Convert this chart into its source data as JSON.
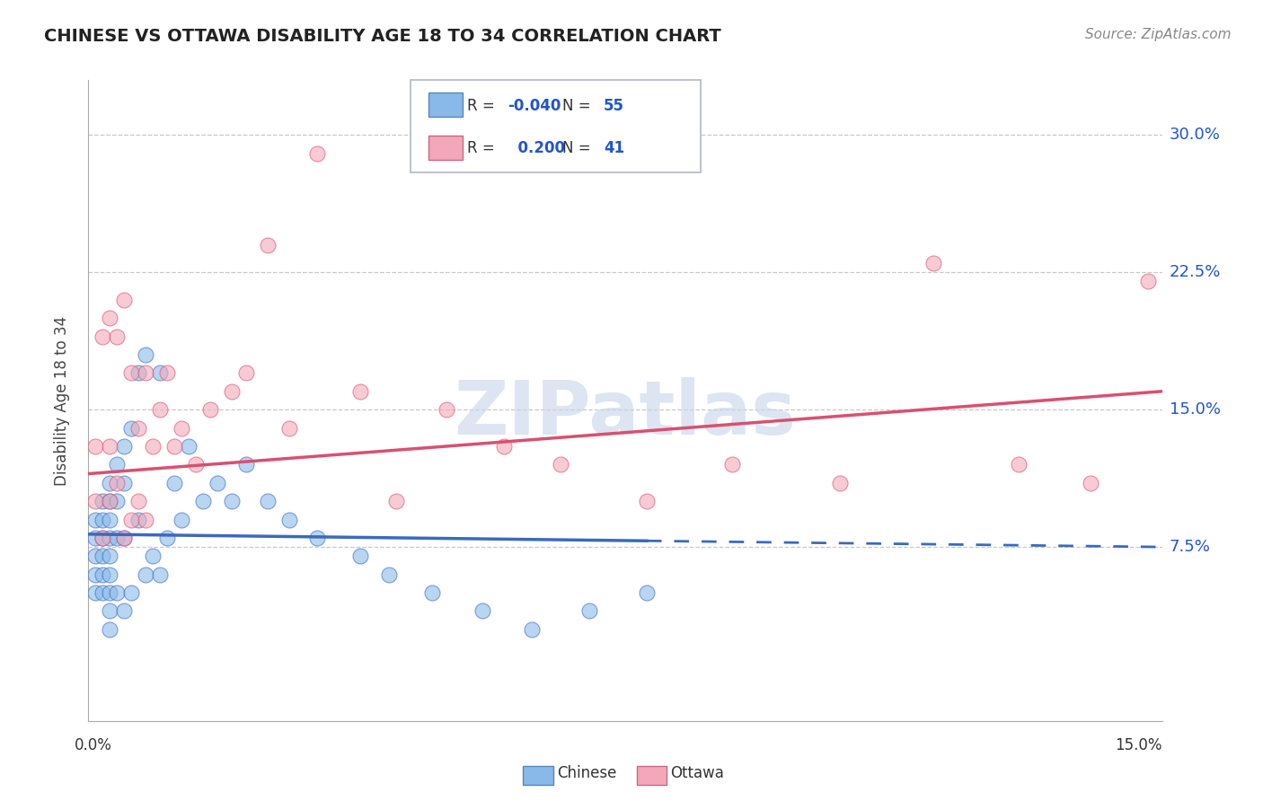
{
  "title": "CHINESE VS OTTAWA DISABILITY AGE 18 TO 34 CORRELATION CHART",
  "source": "Source: ZipAtlas.com",
  "ylabel": "Disability Age 18 to 34",
  "xlim": [
    0.0,
    0.15
  ],
  "ylim": [
    -0.02,
    0.33
  ],
  "yticks": [
    0.075,
    0.15,
    0.225,
    0.3
  ],
  "ytick_labels": [
    "7.5%",
    "15.0%",
    "22.5%",
    "30.0%"
  ],
  "legend_chinese_R": "-0.040",
  "legend_chinese_N": "55",
  "legend_ottawa_R": "0.200",
  "legend_ottawa_N": "41",
  "chinese_color": "#89b9e8",
  "ottawa_color": "#f2a8b8",
  "chinese_line_color": "#3a6abf",
  "ottawa_line_color": "#d95070",
  "watermark": "ZIPatlas",
  "chinese_x": [
    0.001,
    0.001,
    0.001,
    0.001,
    0.001,
    0.002,
    0.002,
    0.002,
    0.002,
    0.002,
    0.002,
    0.003,
    0.003,
    0.003,
    0.003,
    0.003,
    0.003,
    0.003,
    0.003,
    0.003,
    0.004,
    0.004,
    0.004,
    0.004,
    0.005,
    0.005,
    0.005,
    0.005,
    0.006,
    0.006,
    0.007,
    0.007,
    0.008,
    0.008,
    0.009,
    0.01,
    0.01,
    0.011,
    0.012,
    0.013,
    0.014,
    0.016,
    0.018,
    0.02,
    0.022,
    0.025,
    0.028,
    0.032,
    0.038,
    0.042,
    0.048,
    0.055,
    0.062,
    0.07,
    0.078
  ],
  "chinese_y": [
    0.09,
    0.08,
    0.07,
    0.06,
    0.05,
    0.1,
    0.09,
    0.08,
    0.07,
    0.06,
    0.05,
    0.11,
    0.1,
    0.09,
    0.08,
    0.07,
    0.06,
    0.05,
    0.04,
    0.03,
    0.12,
    0.1,
    0.08,
    0.05,
    0.13,
    0.11,
    0.08,
    0.04,
    0.14,
    0.05,
    0.17,
    0.09,
    0.18,
    0.06,
    0.07,
    0.17,
    0.06,
    0.08,
    0.11,
    0.09,
    0.13,
    0.1,
    0.11,
    0.1,
    0.12,
    0.1,
    0.09,
    0.08,
    0.07,
    0.06,
    0.05,
    0.04,
    0.03,
    0.04,
    0.05
  ],
  "ottawa_x": [
    0.001,
    0.001,
    0.002,
    0.002,
    0.003,
    0.003,
    0.003,
    0.004,
    0.004,
    0.005,
    0.005,
    0.006,
    0.006,
    0.007,
    0.007,
    0.008,
    0.008,
    0.009,
    0.01,
    0.011,
    0.012,
    0.013,
    0.015,
    0.017,
    0.02,
    0.022,
    0.025,
    0.028,
    0.032,
    0.038,
    0.043,
    0.05,
    0.058,
    0.066,
    0.078,
    0.09,
    0.105,
    0.118,
    0.13,
    0.14,
    0.148
  ],
  "ottawa_y": [
    0.13,
    0.1,
    0.19,
    0.08,
    0.2,
    0.13,
    0.1,
    0.19,
    0.11,
    0.21,
    0.08,
    0.17,
    0.09,
    0.14,
    0.1,
    0.17,
    0.09,
    0.13,
    0.15,
    0.17,
    0.13,
    0.14,
    0.12,
    0.15,
    0.16,
    0.17,
    0.24,
    0.14,
    0.29,
    0.16,
    0.1,
    0.15,
    0.13,
    0.12,
    0.1,
    0.12,
    0.11,
    0.23,
    0.12,
    0.11,
    0.22
  ],
  "chinese_line_x0": 0.0,
  "chinese_line_x1": 0.15,
  "chinese_line_y0": 0.082,
  "chinese_line_y1": 0.075,
  "chinese_dashed_from": 0.078,
  "ottawa_line_x0": 0.0,
  "ottawa_line_x1": 0.15,
  "ottawa_line_y0": 0.115,
  "ottawa_line_y1": 0.16
}
